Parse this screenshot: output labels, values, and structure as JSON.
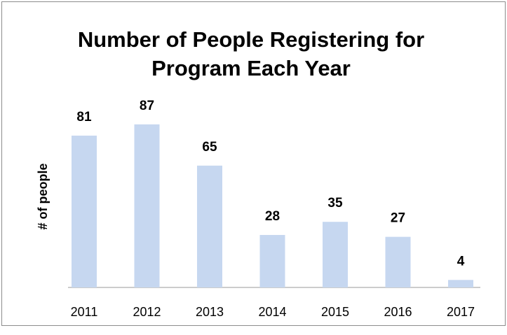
{
  "chart_data": {
    "type": "bar",
    "title": "Number of People Registering for Program Each Year",
    "y_label": "# of people",
    "categories": [
      "2011",
      "2012",
      "2013",
      "2014",
      "2015",
      "2016",
      "2017"
    ],
    "values": [
      81,
      87,
      65,
      28,
      35,
      27,
      4
    ],
    "color": "#c6d7f0",
    "ylim": [
      0,
      100
    ]
  }
}
